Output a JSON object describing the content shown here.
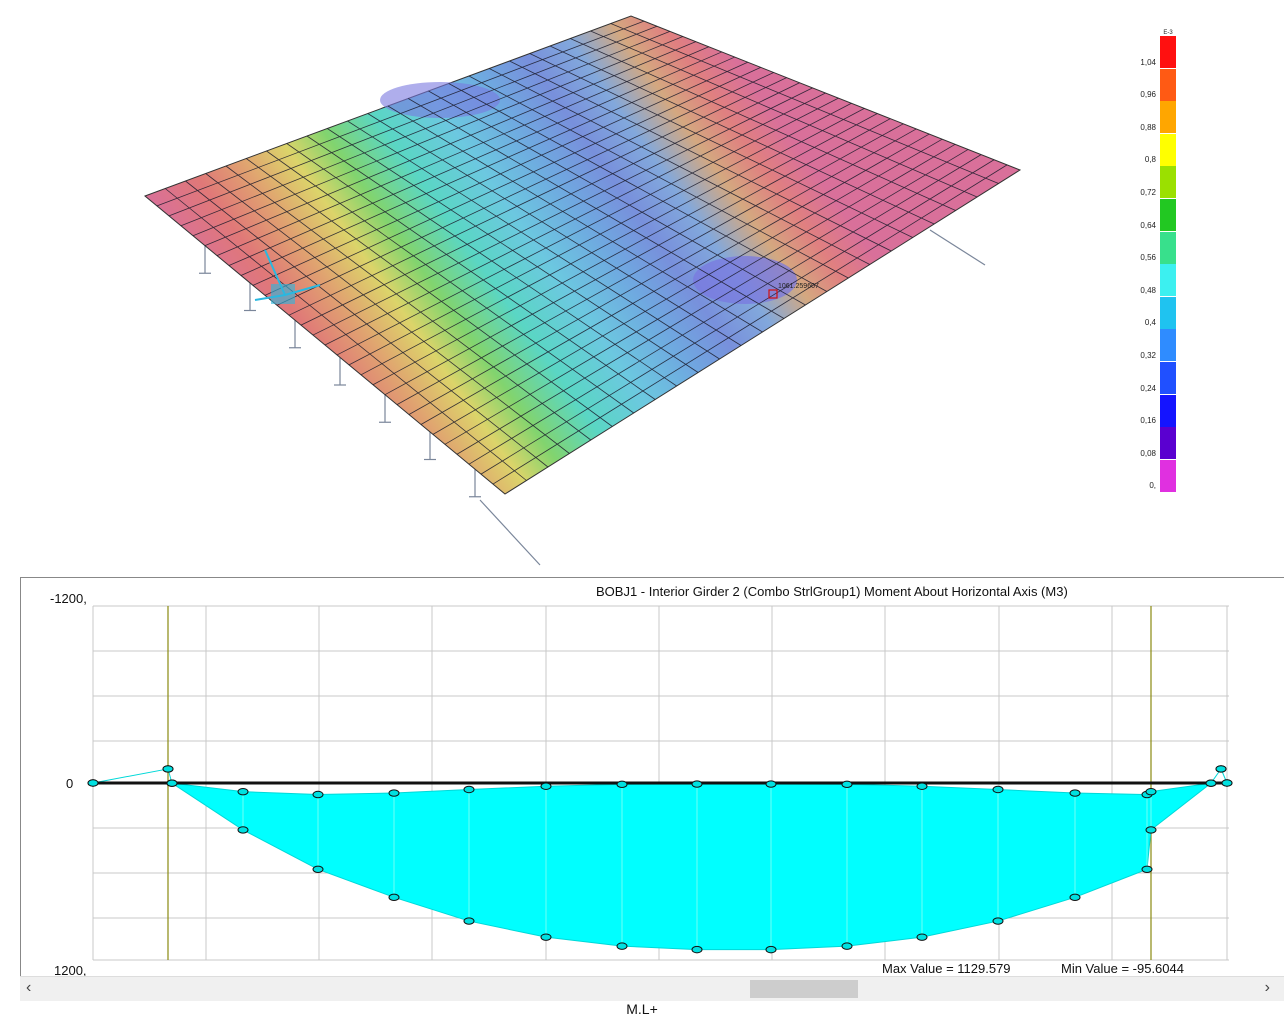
{
  "model_view": {
    "label_point": "1061.259607",
    "legend": {
      "exponent": "E-3",
      "labels": [
        "1,04",
        "0,96",
        "0,88",
        "0,8",
        "0,72",
        "0,64",
        "0,56",
        "0,48",
        "0,4",
        "0,32",
        "0,24",
        "0,16",
        "0,08",
        "0,"
      ],
      "colors": [
        "#ff1010",
        "#ff5a14",
        "#ffa600",
        "#ffff00",
        "#9be000",
        "#22c822",
        "#38e08c",
        "#3cf0f0",
        "#1fc3f0",
        "#2f8cff",
        "#2050ff",
        "#1414ff",
        "#5a00d0",
        "#e030e0"
      ]
    }
  },
  "chart": {
    "title": "BOBJ1 - Interior Girder 2   (Combo StrlGroup1)   Moment About Horizontal Axis  (M3)",
    "y_top_label": "-1200,",
    "y_zero_label": "0",
    "y_bottom_label": "1200,",
    "max_value_text": "Max Value = 1129.579",
    "min_value_text": "Min Value = -95.6044",
    "fill_color": "#00ffff"
  },
  "chart_data": {
    "type": "area",
    "title": "BOBJ1 - Interior Girder 2   (Combo StrlGroup1)   Moment About Horizontal Axis  (M3)",
    "ylim": [
      -1200,
      1200
    ],
    "y_inverted": true,
    "series": [
      {
        "values": [
          0,
          -95.6,
          1.4,
          58.6,
          78,
          68,
          44,
          22,
          9,
          7,
          7,
          9,
          22,
          44,
          68,
          78,
          58.6,
          1.4,
          -95.6,
          0
        ]
      },
      {
        "values": [
          0,
          -95.6,
          1.4,
          318,
          585,
          775,
          936,
          1045,
          1106,
          1129.6,
          1129.6,
          1106,
          1045,
          936,
          775,
          585,
          318,
          1.4,
          -95.6,
          0
        ]
      }
    ]
  },
  "caption": "M.L+"
}
